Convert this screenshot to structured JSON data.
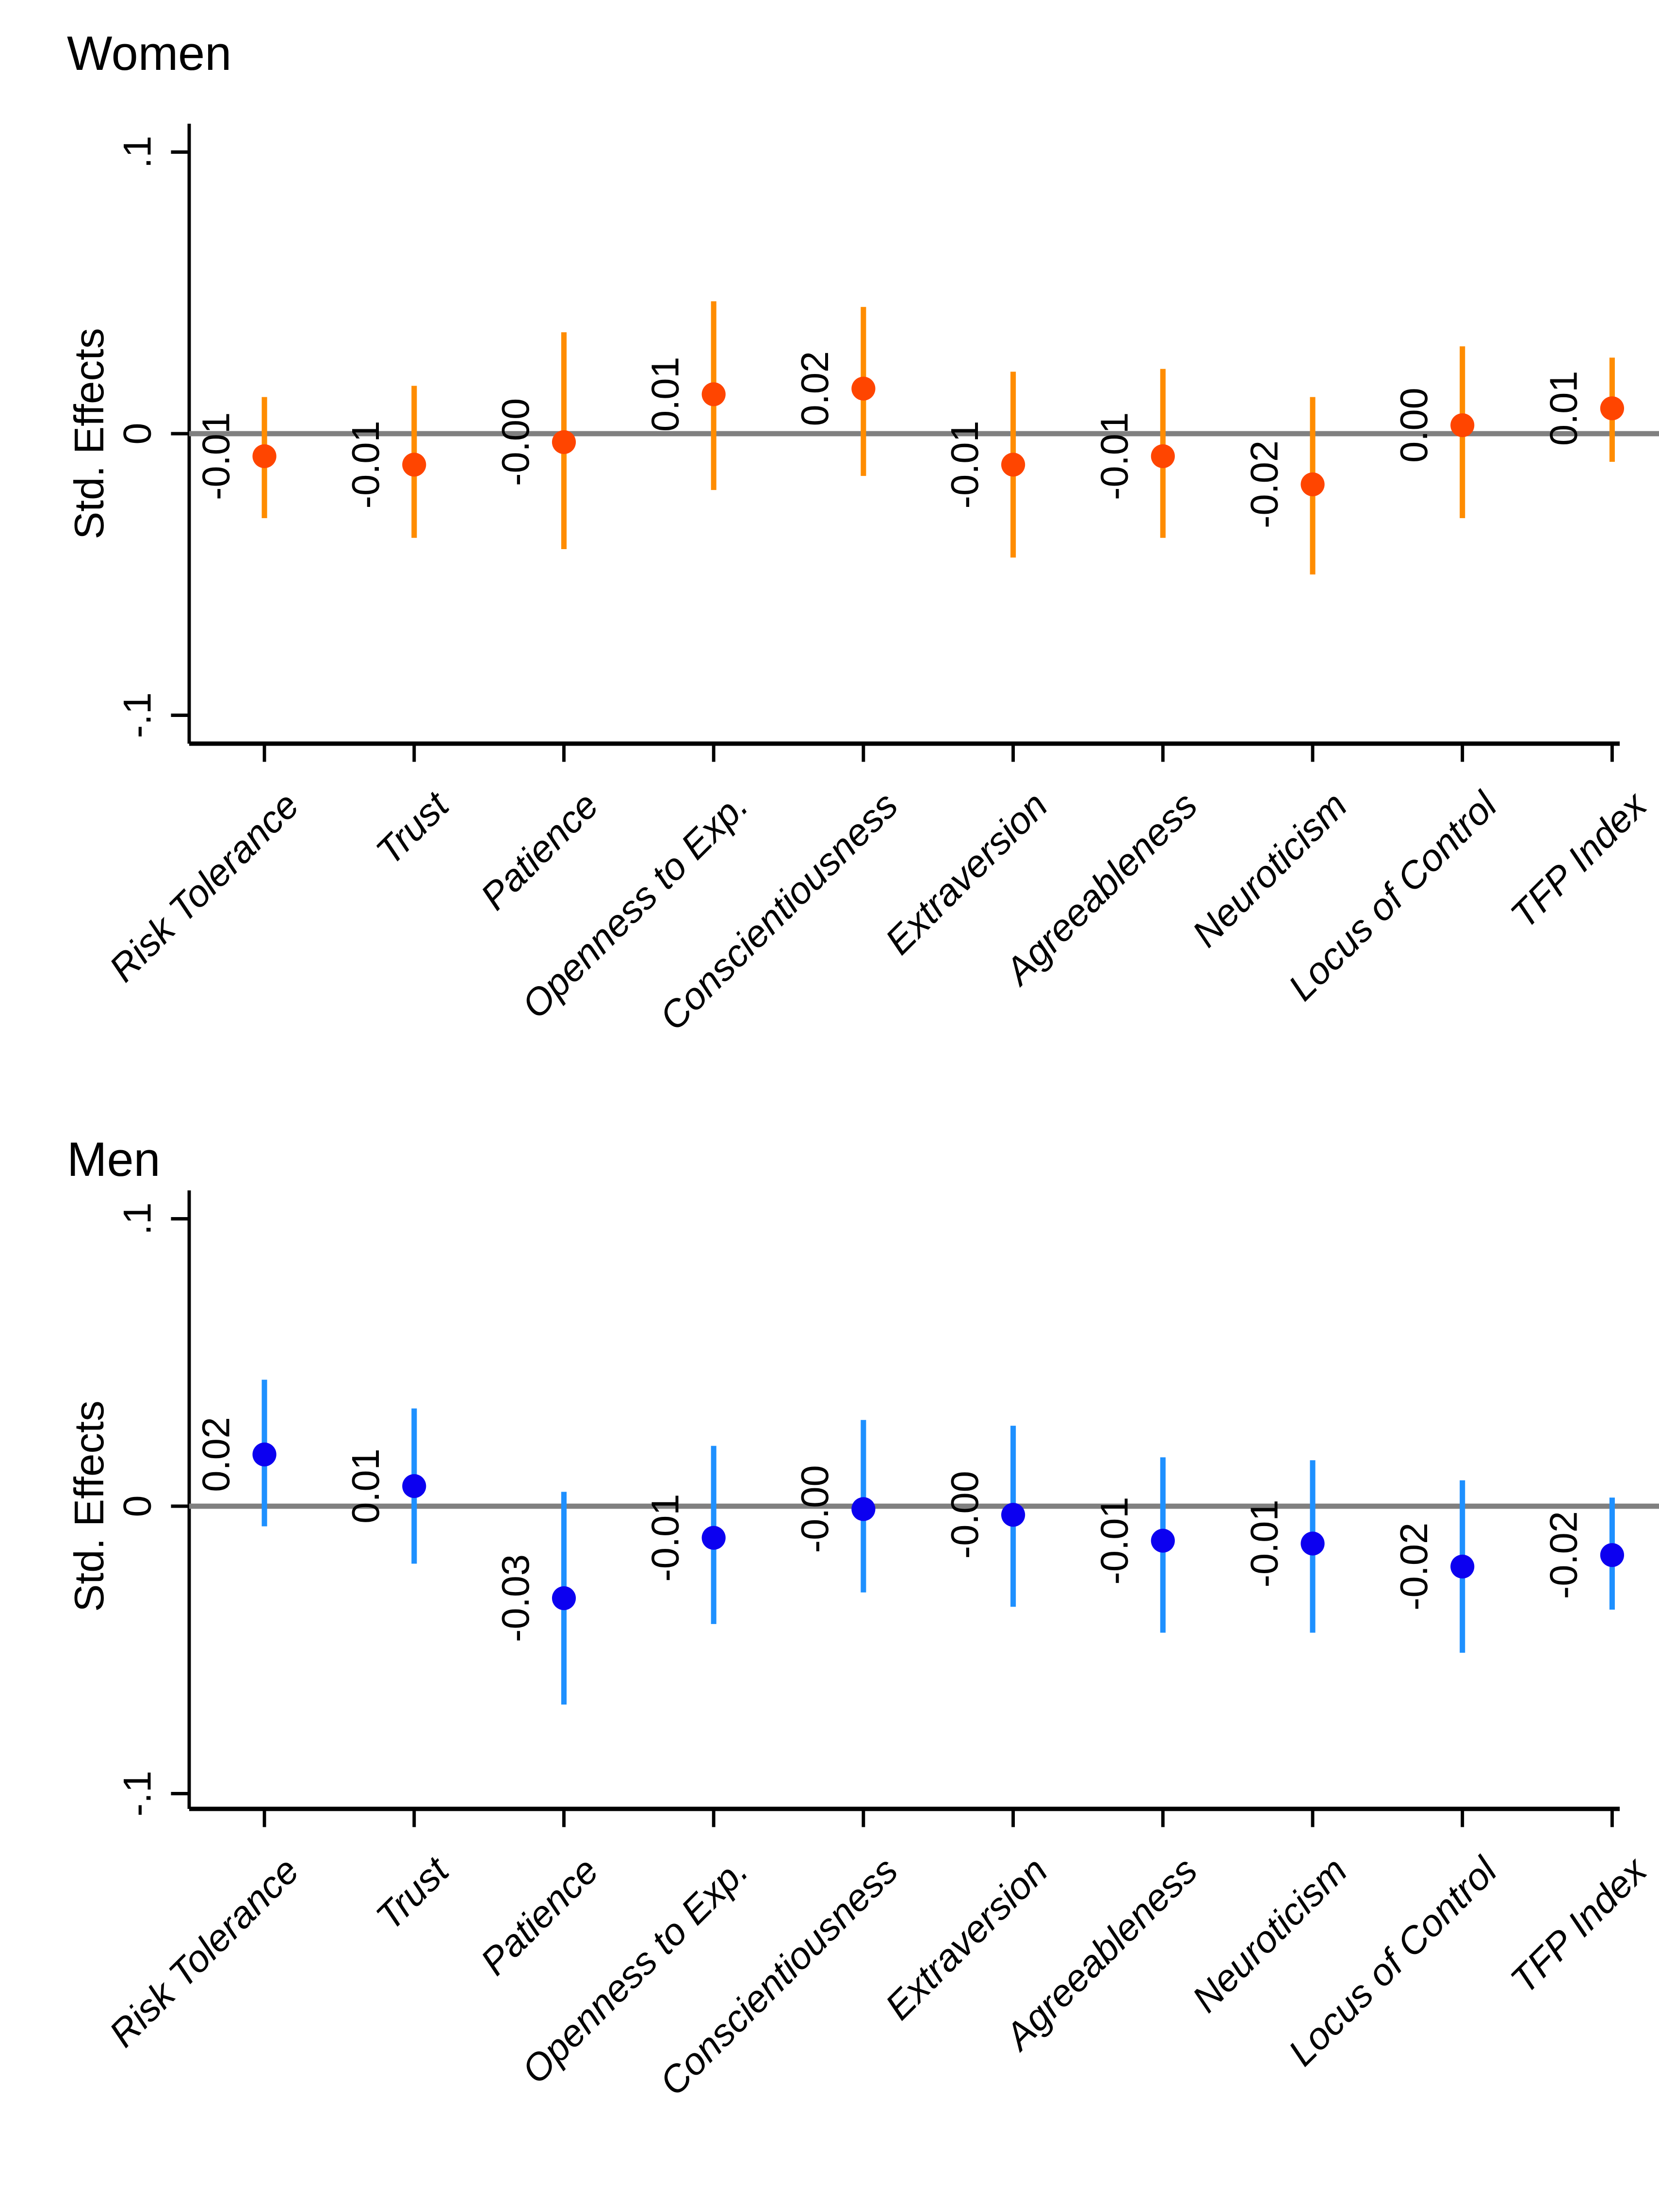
{
  "figure": {
    "background": "#ffffff",
    "panel_count": 2
  },
  "chart_data": [
    {
      "type": "scatter",
      "subtype": "dot-whisker-coefplot",
      "title": "Women",
      "ylabel": "Std. Effects",
      "xlabel": "",
      "ylim": [
        -0.1,
        0.1
      ],
      "grid": false,
      "legend": "none",
      "zero_line": 0,
      "y_ticks": [
        {
          "label": ".1",
          "value": 0.1
        },
        {
          "label": "0",
          "value": 0
        },
        {
          "label": "-.1",
          "value": -0.1
        }
      ],
      "colors": {
        "marker": "#ff4500",
        "ci": "#ff8c00",
        "zero_line": "#808080",
        "axis": "#000000",
        "text": "#000000"
      },
      "categories": [
        "Risk Tolerance",
        "Trust",
        "Patience",
        "Openness to Exp.",
        "Conscientiousness",
        "Extraversion",
        "Agreeableness",
        "Neuroticism",
        "Locus of Control",
        "TFP Index"
      ],
      "points": [
        {
          "category": "Risk Tolerance",
          "label": "-0.01",
          "value": -0.008,
          "ci_low": -0.03,
          "ci_high": 0.013
        },
        {
          "category": "Trust",
          "label": "-0.01",
          "value": -0.011,
          "ci_low": -0.037,
          "ci_high": 0.017
        },
        {
          "category": "Patience",
          "label": "-0.00",
          "value": -0.003,
          "ci_low": -0.041,
          "ci_high": 0.036
        },
        {
          "category": "Openness to Exp.",
          "label": "0.01",
          "value": 0.014,
          "ci_low": -0.02,
          "ci_high": 0.047
        },
        {
          "category": "Conscientiousness",
          "label": "0.02",
          "value": 0.016,
          "ci_low": -0.015,
          "ci_high": 0.045
        },
        {
          "category": "Extraversion",
          "label": "-0.01",
          "value": -0.011,
          "ci_low": -0.044,
          "ci_high": 0.022
        },
        {
          "category": "Agreeableness",
          "label": "-0.01",
          "value": -0.008,
          "ci_low": -0.037,
          "ci_high": 0.023
        },
        {
          "category": "Neuroticism",
          "label": "-0.02",
          "value": -0.018,
          "ci_low": -0.05,
          "ci_high": 0.013
        },
        {
          "category": "Locus of Control",
          "label": "0.00",
          "value": 0.003,
          "ci_low": -0.03,
          "ci_high": 0.031
        },
        {
          "category": "TFP Index",
          "label": "0.01",
          "value": 0.009,
          "ci_low": -0.01,
          "ci_high": 0.027
        }
      ]
    },
    {
      "type": "scatter",
      "subtype": "dot-whisker-coefplot",
      "title": "Men",
      "ylabel": "Std. Effects",
      "xlabel": "",
      "ylim": [
        -0.1,
        0.1
      ],
      "grid": false,
      "legend": "none",
      "zero_line": 0,
      "y_ticks": [
        {
          "label": ".1",
          "value": 0.1
        },
        {
          "label": "0",
          "value": 0
        },
        {
          "label": "-.1",
          "value": -0.1
        }
      ],
      "colors": {
        "marker": "#0c00f0",
        "ci": "#1e90ff",
        "zero_line": "#808080",
        "axis": "#000000",
        "text": "#000000"
      },
      "categories": [
        "Risk Tolerance",
        "Trust",
        "Patience",
        "Openness to Exp.",
        "Conscientiousness",
        "Extraversion",
        "Agreeableness",
        "Neuroticism",
        "Locus of Control",
        "TFP Index"
      ],
      "points": [
        {
          "category": "Risk Tolerance",
          "label": "0.02",
          "value": 0.018,
          "ci_low": -0.007,
          "ci_high": 0.044
        },
        {
          "category": "Trust",
          "label": "0.01",
          "value": 0.007,
          "ci_low": -0.02,
          "ci_high": 0.034
        },
        {
          "category": "Patience",
          "label": "-0.03",
          "value": -0.032,
          "ci_low": -0.069,
          "ci_high": 0.005
        },
        {
          "category": "Openness to Exp.",
          "label": "-0.01",
          "value": -0.011,
          "ci_low": -0.041,
          "ci_high": 0.021
        },
        {
          "category": "Conscientiousness",
          "label": "-0.00",
          "value": -0.001,
          "ci_low": -0.03,
          "ci_high": 0.03
        },
        {
          "category": "Extraversion",
          "label": "-0.00",
          "value": -0.003,
          "ci_low": -0.035,
          "ci_high": 0.028
        },
        {
          "category": "Agreeableness",
          "label": "-0.01",
          "value": -0.012,
          "ci_low": -0.044,
          "ci_high": 0.017
        },
        {
          "category": "Neuroticism",
          "label": "-0.01",
          "value": -0.013,
          "ci_low": -0.044,
          "ci_high": 0.016
        },
        {
          "category": "Locus of Control",
          "label": "-0.02",
          "value": -0.021,
          "ci_low": -0.051,
          "ci_high": 0.009
        },
        {
          "category": "TFP Index",
          "label": "-0.02",
          "value": -0.017,
          "ci_low": -0.036,
          "ci_high": 0.003
        }
      ]
    }
  ]
}
